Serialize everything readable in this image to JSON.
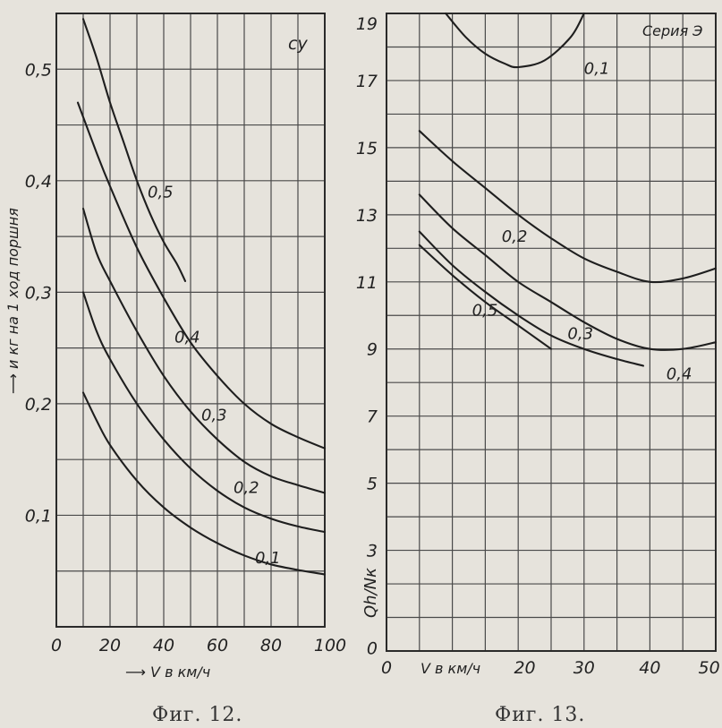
{
  "chart_data": [
    {
      "type": "line",
      "caption": "Фиг. 12.",
      "title": "cy",
      "xlabel": "V в км/ч",
      "ylabel": "и кг на 1 ход поршня",
      "xlim": [
        0,
        100
      ],
      "ylim": [
        0,
        0.55
      ],
      "xticks": [
        "0",
        "20",
        "40",
        "60",
        "80",
        "100"
      ],
      "yticks": [
        "0,1",
        "0,2",
        "0,3",
        "0,4",
        "0,5"
      ],
      "grid": true,
      "series": [
        {
          "name": "0,5",
          "x": [
            10,
            15,
            20,
            25,
            30,
            35,
            40,
            45,
            48
          ],
          "y": [
            0.545,
            0.51,
            0.47,
            0.435,
            0.4,
            0.37,
            0.345,
            0.325,
            0.31
          ]
        },
        {
          "name": "0,4",
          "x": [
            8,
            15,
            20,
            30,
            40,
            50,
            60,
            70,
            80,
            90,
            100
          ],
          "y": [
            0.47,
            0.425,
            0.395,
            0.34,
            0.295,
            0.255,
            0.225,
            0.2,
            0.182,
            0.17,
            0.16
          ]
        },
        {
          "name": "0,3",
          "x": [
            10,
            15,
            20,
            30,
            40,
            50,
            60,
            70,
            80,
            90,
            100
          ],
          "y": [
            0.375,
            0.335,
            0.31,
            0.265,
            0.225,
            0.193,
            0.168,
            0.148,
            0.135,
            0.127,
            0.12
          ]
        },
        {
          "name": "0,2",
          "x": [
            10,
            15,
            20,
            30,
            40,
            50,
            60,
            70,
            80,
            90,
            100
          ],
          "y": [
            0.3,
            0.265,
            0.24,
            0.2,
            0.168,
            0.142,
            0.122,
            0.107,
            0.097,
            0.09,
            0.085
          ]
        },
        {
          "name": "0,1",
          "x": [
            10,
            15,
            20,
            30,
            40,
            50,
            60,
            70,
            80,
            90,
            100
          ],
          "y": [
            0.21,
            0.185,
            0.163,
            0.131,
            0.107,
            0.089,
            0.075,
            0.064,
            0.056,
            0.051,
            0.047
          ]
        }
      ],
      "annotations": [
        {
          "text": "0,5",
          "x": 34,
          "y": 0.385
        },
        {
          "text": "0,4",
          "x": 44,
          "y": 0.255
        },
        {
          "text": "0,3",
          "x": 54,
          "y": 0.185
        },
        {
          "text": "0,2",
          "x": 66,
          "y": 0.12
        },
        {
          "text": "0,1",
          "x": 74,
          "y": 0.057
        }
      ]
    },
    {
      "type": "line",
      "caption": "Фиг. 13.",
      "title": "Серия Э",
      "xlabel": "V в км/ч",
      "ylabel": "Qh/Nк",
      "xlim": [
        0,
        50
      ],
      "ylim": [
        0,
        19
      ],
      "xticks": [
        "0",
        "20",
        "30",
        "40",
        "50"
      ],
      "yticks": [
        "0",
        "3",
        "5",
        "7",
        "9",
        "11",
        "13",
        "15",
        "17",
        "19"
      ],
      "grid": true,
      "series": [
        {
          "name": "0,1",
          "x": [
            9,
            12,
            15,
            18,
            20,
            24,
            28,
            30
          ],
          "y": [
            19,
            18.3,
            17.8,
            17.5,
            17.4,
            17.6,
            18.3,
            19
          ]
        },
        {
          "name": "0,2",
          "x": [
            5,
            10,
            15,
            20,
            25,
            30,
            35,
            40,
            45,
            50
          ],
          "y": [
            15.5,
            14.6,
            13.8,
            13.0,
            12.3,
            11.7,
            11.3,
            11.0,
            11.1,
            11.4
          ]
        },
        {
          "name": "0,3",
          "x": [
            5,
            10,
            15,
            20,
            25,
            30,
            35,
            40,
            45,
            50
          ],
          "y": [
            13.6,
            12.6,
            11.8,
            11.0,
            10.4,
            9.8,
            9.3,
            9.0,
            9.0,
            9.2
          ]
        },
        {
          "name": "0,4",
          "x": [
            5,
            10,
            15,
            20,
            25,
            30,
            35,
            39
          ],
          "y": [
            12.5,
            11.5,
            10.7,
            10.0,
            9.4,
            9.0,
            8.7,
            8.5
          ]
        },
        {
          "name": "0,5",
          "x": [
            5,
            10,
            15,
            20,
            25
          ],
          "y": [
            12.1,
            11.2,
            10.4,
            9.7,
            9.0
          ]
        }
      ],
      "annotations": [
        {
          "text": "0,1",
          "x": 30,
          "y": 17.2
        },
        {
          "text": "0,2",
          "x": 17.5,
          "y": 12.2
        },
        {
          "text": "0,3",
          "x": 27.5,
          "y": 9.3
        },
        {
          "text": "0,4",
          "x": 42.5,
          "y": 8.1
        },
        {
          "text": "0,5",
          "x": 13,
          "y": 10.0
        }
      ]
    }
  ]
}
